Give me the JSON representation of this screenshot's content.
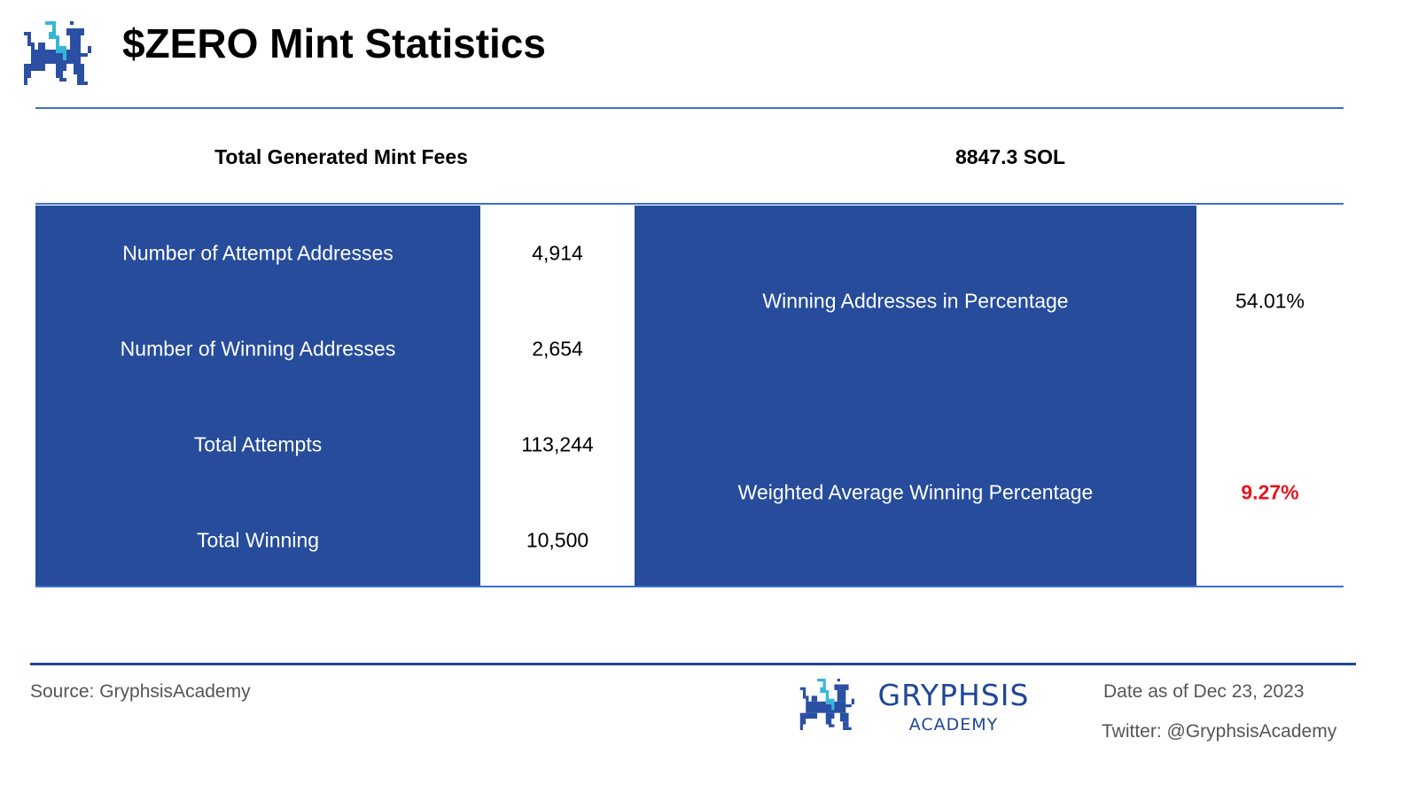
{
  "header": {
    "title": "$ZERO Mint Statistics",
    "logo_icon": "gryphon-logo"
  },
  "summary": {
    "label": "Total Generated Mint Fees",
    "value": "8847.3 SOL"
  },
  "left_table": [
    {
      "label": "Number of Attempt Addresses",
      "value": "4,914"
    },
    {
      "label": "Number of Winning Addresses",
      "value": "2,654"
    },
    {
      "label": "Total Attempts",
      "value": "113,244"
    },
    {
      "label": "Total Winning",
      "value": "10,500"
    }
  ],
  "right_table": [
    {
      "label": "Winning Addresses in Percentage",
      "value": "54.01%"
    },
    {
      "label": "Weighted Average Winning Percentage",
      "value": "9.27%"
    }
  ],
  "colors": {
    "table_blue": "#264c9b",
    "highlight_red": "#e8141b",
    "rule_blue": "#3a6fd0"
  },
  "footer": {
    "source": "Source: GryphsisAcademy",
    "brand_name": "GRYPHSIS",
    "brand_sub": "ACADEMY",
    "date": "Date as of Dec 23, 2023",
    "twitter": "Twitter: @GryphsisAcademy"
  }
}
